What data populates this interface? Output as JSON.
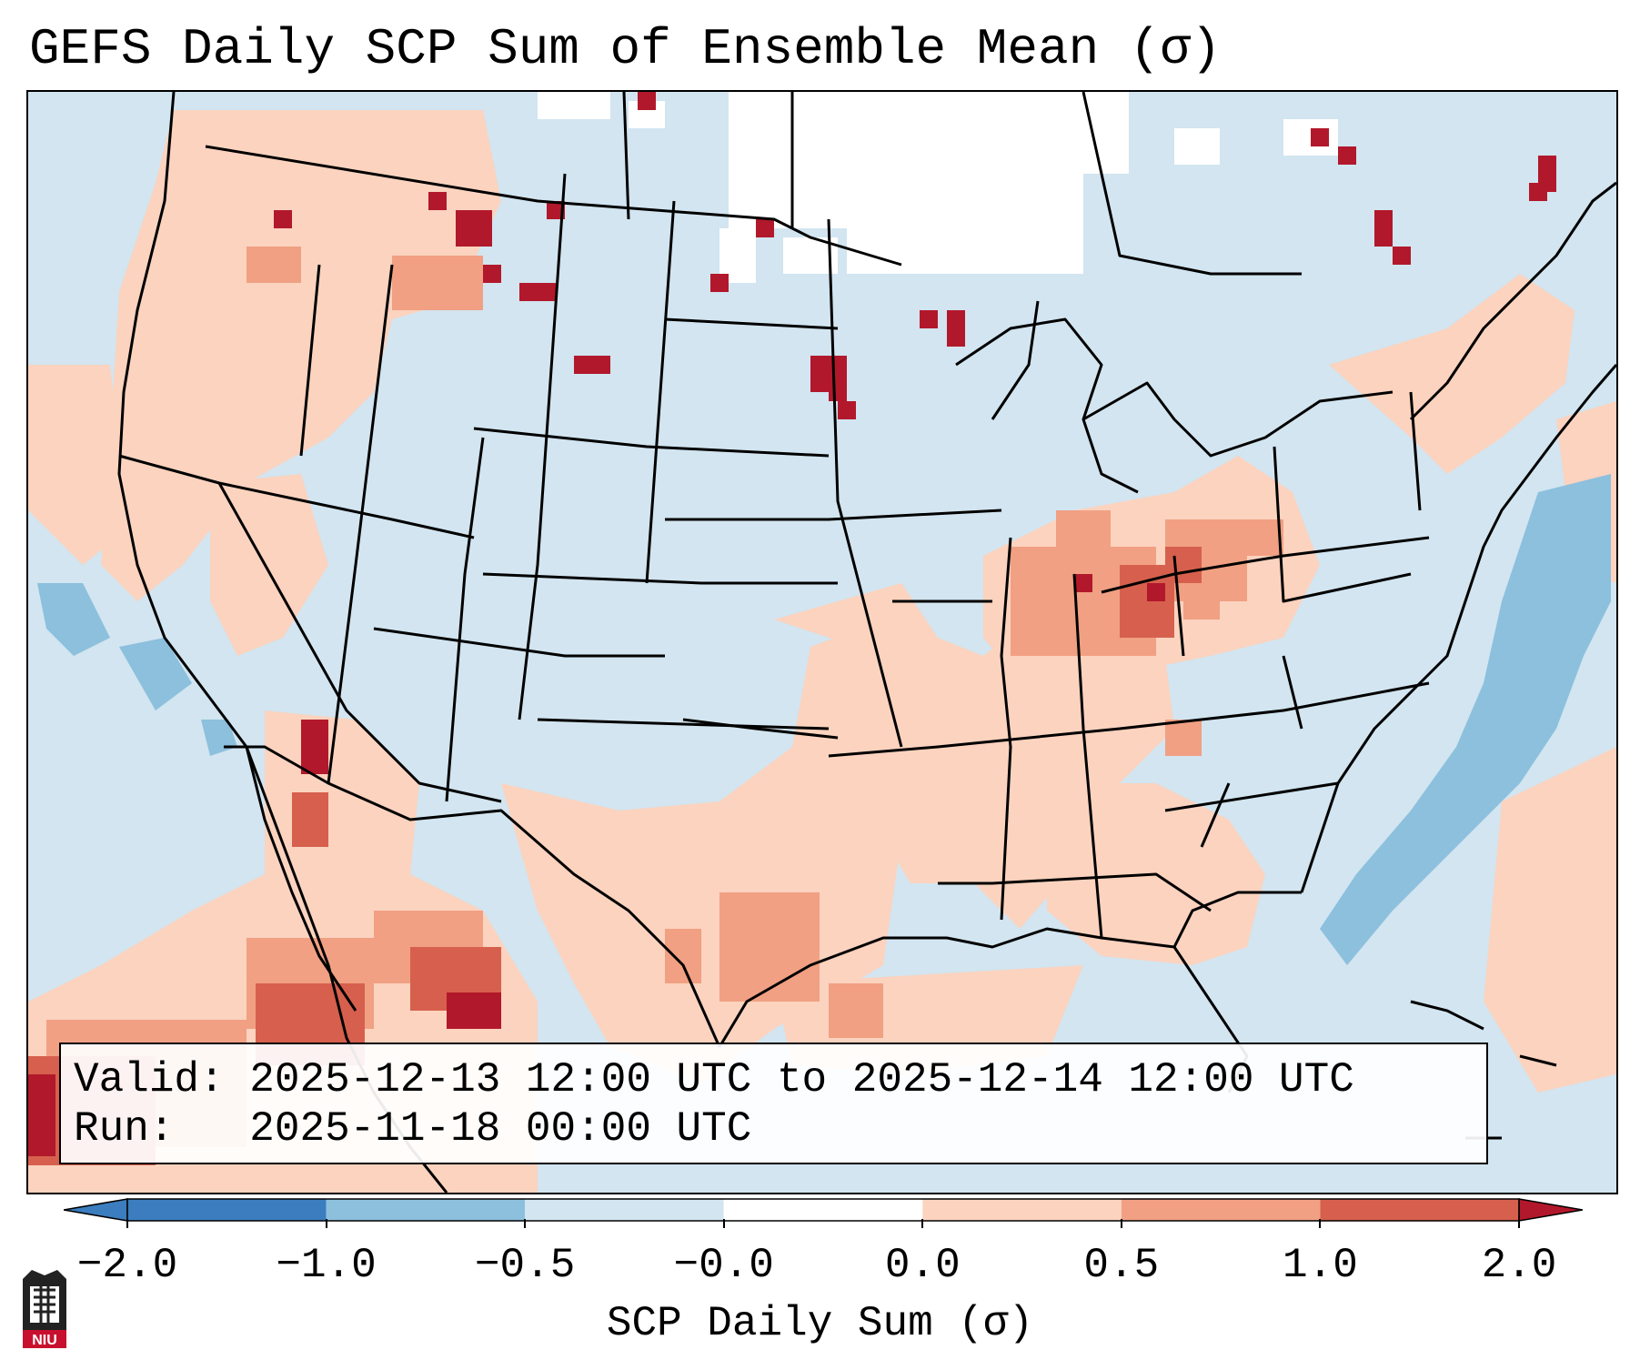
{
  "title": "GEFS Daily SCP Sum of Ensemble Mean (σ)",
  "info": {
    "valid_label": "Valid:",
    "valid_value": "2025-12-13 12:00 UTC to 2025-12-14 12:00 UTC",
    "run_label": "Run:",
    "run_value": "2025-11-18 00:00 UTC"
  },
  "colorbar": {
    "label": "SCP Daily Sum (σ)",
    "ticks": [
      "−2.0",
      "−1.0",
      "−0.5",
      "−0.0",
      "0.0",
      "0.5",
      "1.0",
      "2.0"
    ],
    "colors": [
      "#3b7dbe",
      "#8cc0dd",
      "#d2e5f0",
      "#ffffff",
      "#fbd3bf",
      "#f1a083",
      "#d6604d",
      "#b2182b"
    ],
    "extend": "both"
  },
  "logo": {
    "text": "NIU"
  },
  "legend_colors": {
    "strong_negative": "#8cc0dd",
    "weak_negative": "#d2e5f0",
    "neutral": "#ffffff",
    "weak_positive": "#fbd3bf",
    "moderate_positive": "#f1a083",
    "strong_positive": "#d6604d",
    "extreme_positive": "#b2182b"
  }
}
